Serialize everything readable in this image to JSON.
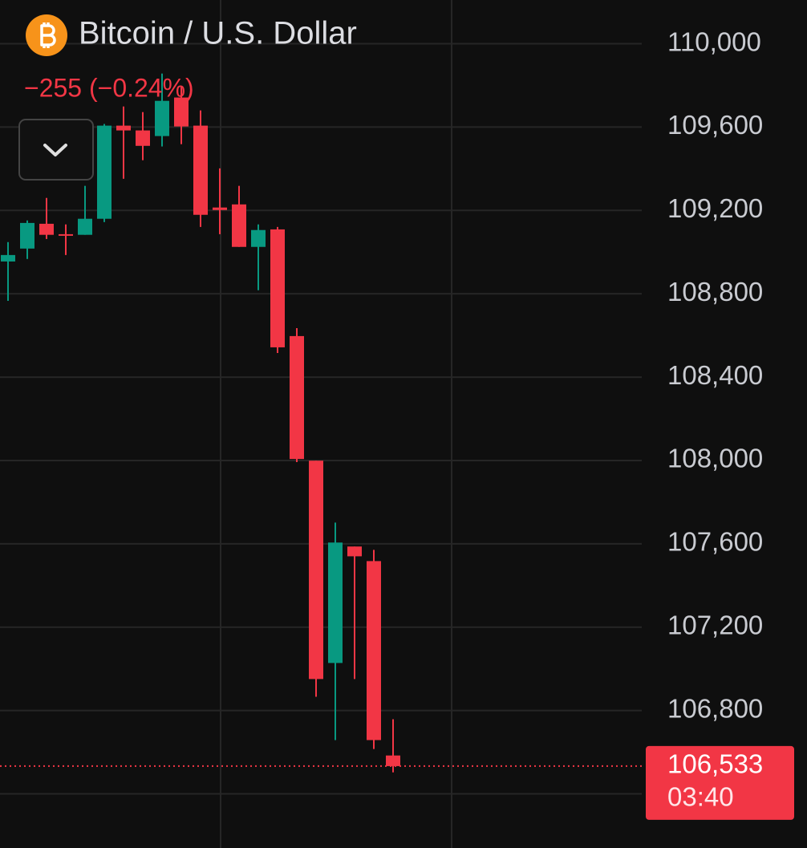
{
  "chart_data": {
    "type": "candlestick",
    "title": "Bitcoin / U.S. Dollar",
    "change_label": "−255 (−0.24%)",
    "categories": [
      null,
      null,
      null,
      null,
      null,
      null,
      null,
      null,
      null,
      null,
      null,
      null,
      null,
      null,
      null,
      null,
      null,
      null,
      null,
      null,
      null
    ],
    "open": [
      108955,
      109017,
      109136,
      109086,
      109083,
      109160,
      109607,
      109584,
      109557,
      109742,
      109607,
      109214,
      109229,
      109025,
      109109,
      108597,
      107999,
      107028,
      107587,
      107517,
      106584
    ],
    "high": [
      109048,
      109152,
      109260,
      109133,
      109318,
      109615,
      109699,
      109672,
      109857,
      109796,
      109680,
      109402,
      109318,
      109133,
      109121,
      108635,
      107999,
      107702,
      107587,
      107571,
      106758
    ],
    "low": [
      108766,
      108967,
      109063,
      108986,
      109083,
      109144,
      109352,
      109441,
      109507,
      109518,
      109121,
      109086,
      109025,
      108817,
      108516,
      107992,
      106866,
      106658,
      106951,
      106615,
      106503
    ],
    "close": [
      108986,
      109140,
      109083,
      109079,
      109160,
      109607,
      109584,
      109510,
      109726,
      109603,
      109179,
      109202,
      109025,
      109106,
      108543,
      108007,
      106951,
      107606,
      107540,
      106658,
      106533
    ],
    "up_color": "#089981",
    "down_color": "#f23645",
    "ylim": [
      106140,
      110210
    ],
    "yticks": [
      {
        "value": 110000,
        "label": "110,000"
      },
      {
        "value": 109600,
        "label": "109,600"
      },
      {
        "value": 109200,
        "label": "109,200"
      },
      {
        "value": 108800,
        "label": "108,800"
      },
      {
        "value": 108400,
        "label": "108,400"
      },
      {
        "value": 108000,
        "label": "108,000"
      },
      {
        "value": 107600,
        "label": "107,600"
      },
      {
        "value": 107200,
        "label": "107,200"
      },
      {
        "value": 106800,
        "label": "106,800"
      },
      {
        "value": 106400,
        "label": null
      }
    ],
    "grid": true,
    "last_price": {
      "value": 106533,
      "label": "106,533"
    },
    "countdown": "03:40"
  }
}
